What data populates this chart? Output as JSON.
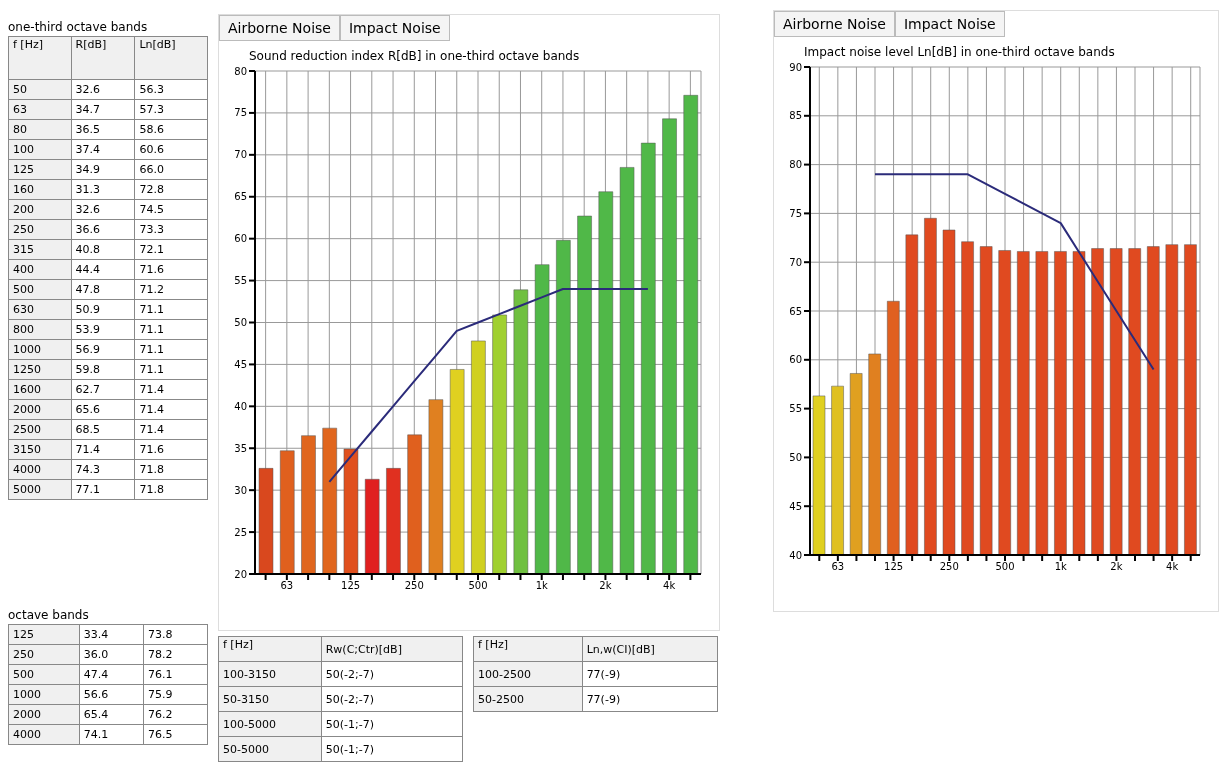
{
  "chart_data": [
    {
      "type": "other",
      "title": "one-third octave bands",
      "xlabel": "f [Hz]",
      "data_labels": true,
      "categories": [
        "50",
        "63",
        "80",
        "100",
        "125",
        "160",
        "200",
        "250",
        "315",
        "400",
        "500",
        "630",
        "800",
        "1000",
        "1250",
        "1600",
        "2000",
        "2500",
        "3150",
        "4000",
        "5000"
      ],
      "series": [
        {
          "name": "R[dB]",
          "values": [
            32.6,
            34.7,
            36.5,
            37.4,
            34.9,
            31.3,
            32.6,
            36.6,
            40.8,
            44.4,
            47.8,
            50.9,
            53.9,
            56.9,
            59.8,
            62.7,
            65.6,
            68.5,
            71.4,
            74.3,
            77.1
          ]
        },
        {
          "name": "Ln[dB]",
          "values": [
            56.3,
            57.3,
            58.6,
            60.6,
            66.0,
            72.8,
            74.5,
            73.3,
            72.1,
            71.6,
            71.2,
            71.1,
            71.1,
            71.1,
            71.1,
            71.4,
            71.4,
            71.4,
            71.6,
            71.8,
            71.8
          ],
          "value_labels": [
            "56.3",
            "57.3",
            "58.6",
            "60.6",
            "66.0",
            "72.8",
            "74.5",
            "73.3",
            "72.1",
            "71.6",
            "71.2",
            "71.1",
            "71.1",
            "71.1",
            "71.1",
            "71.4",
            "71.4",
            "71.4",
            "71.6",
            "71.8",
            "71.8"
          ]
        }
      ]
    },
    {
      "type": "other",
      "title": "octave bands",
      "data_labels": true,
      "categories": [
        "125",
        "250",
        "500",
        "1000",
        "2000",
        "4000"
      ],
      "series": [
        {
          "values": [
            33.4,
            36.0,
            47.4,
            56.6,
            65.4,
            74.1
          ],
          "value_labels": [
            "33.4",
            "36.0",
            "47.4",
            "56.6",
            "65.4",
            "74.1"
          ]
        },
        {
          "values": [
            73.8,
            78.2,
            76.1,
            75.9,
            76.2,
            76.5
          ]
        }
      ]
    },
    {
      "type": "bar",
      "title": "Sound reduction index R[dB] in one-third octave bands",
      "annotations": [
        "Airborne Noise",
        "Impact Noise"
      ],
      "categories": [
        null,
        "63",
        null,
        null,
        "125",
        null,
        null,
        "250",
        null,
        null,
        "500",
        null,
        null,
        "1k",
        null,
        null,
        "2k",
        null,
        null,
        "4k",
        null
      ],
      "ylim": [
        20,
        80
      ],
      "yticks": [
        20,
        25,
        30,
        35,
        40,
        45,
        50,
        55,
        60,
        65,
        70,
        75,
        80
      ],
      "grid": true,
      "series": [
        {
          "type": "bar",
          "colors": [
            "#d9481e",
            "#e0601e",
            "#e0661e",
            "#e0661e",
            "#e0501e",
            "#e02020",
            "#e03020",
            "#e0601e",
            "#e08020",
            "#e0d020",
            "#d0d020",
            "#a0d030",
            "#70c040",
            "#50b848",
            "#50b848",
            "#50b848",
            "#50b848",
            "#50b848",
            "#50b848",
            "#50b848",
            "#50b848"
          ],
          "values": [
            32.6,
            34.7,
            36.5,
            37.4,
            34.9,
            31.3,
            32.6,
            36.6,
            40.8,
            44.4,
            47.8,
            50.9,
            53.9,
            56.9,
            59.8,
            62.7,
            65.6,
            68.5,
            71.4,
            74.3,
            77.1
          ]
        },
        {
          "type": "line",
          "color": "#2b2b7a",
          "values": [
            null,
            null,
            null,
            31,
            34,
            37,
            40,
            43,
            46,
            49,
            50,
            51,
            52,
            53,
            54,
            54,
            54,
            54,
            54,
            null,
            null
          ]
        }
      ]
    },
    {
      "type": "other",
      "xlabel": "f [Hz]",
      "ylabel": "Rw(C;Ctr)[dB]",
      "categories": [
        "100-3150",
        "50-3150",
        "100-5000",
        "50-5000"
      ],
      "value_labels": [
        "50(-2;-7)",
        "50(-2;-7)",
        "50(-1;-7)",
        "50(-1;-7)"
      ]
    },
    {
      "type": "other",
      "xlabel": "f [Hz]",
      "ylabel": "Ln,w(CI)[dB]",
      "categories": [
        "100-2500",
        "50-2500"
      ],
      "value_labels": [
        "77(-9)",
        "77(-9)"
      ]
    },
    {
      "type": "bar",
      "title": "Impact noise level Ln[dB] in one-third octave bands",
      "annotations": [
        "Airborne Noise",
        "Impact Noise"
      ],
      "categories": [
        null,
        "63",
        null,
        null,
        "125",
        null,
        null,
        "250",
        null,
        null,
        "500",
        null,
        null,
        "1k",
        null,
        null,
        "2k",
        null,
        null,
        "4k",
        null
      ],
      "ylim": [
        40,
        90
      ],
      "yticks": [
        40,
        45,
        50,
        55,
        60,
        65,
        70,
        75,
        80,
        85,
        90
      ],
      "grid": true,
      "series": [
        {
          "type": "bar",
          "colors": [
            "#e0d020",
            "#e0c020",
            "#e0a020",
            "#e08020",
            "#e06020",
            "#e04a20",
            "#e04a20",
            "#e04a20",
            "#e04a20",
            "#e04a20",
            "#e04a20",
            "#e04a20",
            "#e04a20",
            "#e04a20",
            "#e04a20",
            "#e04a20",
            "#e04a20",
            "#e04a20",
            "#e04a20",
            "#e04a20",
            "#e04a20"
          ],
          "values": [
            56.3,
            57.3,
            58.6,
            60.6,
            66.0,
            72.8,
            74.5,
            73.3,
            72.1,
            71.6,
            71.2,
            71.1,
            71.1,
            71.1,
            71.1,
            71.4,
            71.4,
            71.4,
            71.6,
            71.8,
            71.8
          ]
        },
        {
          "type": "line",
          "color": "#2b2b7a",
          "values": [
            null,
            null,
            null,
            79,
            79,
            79,
            79,
            79,
            79,
            78,
            77,
            76,
            75,
            74,
            71,
            68,
            65,
            62,
            59,
            null,
            null
          ]
        }
      ]
    }
  ]
}
